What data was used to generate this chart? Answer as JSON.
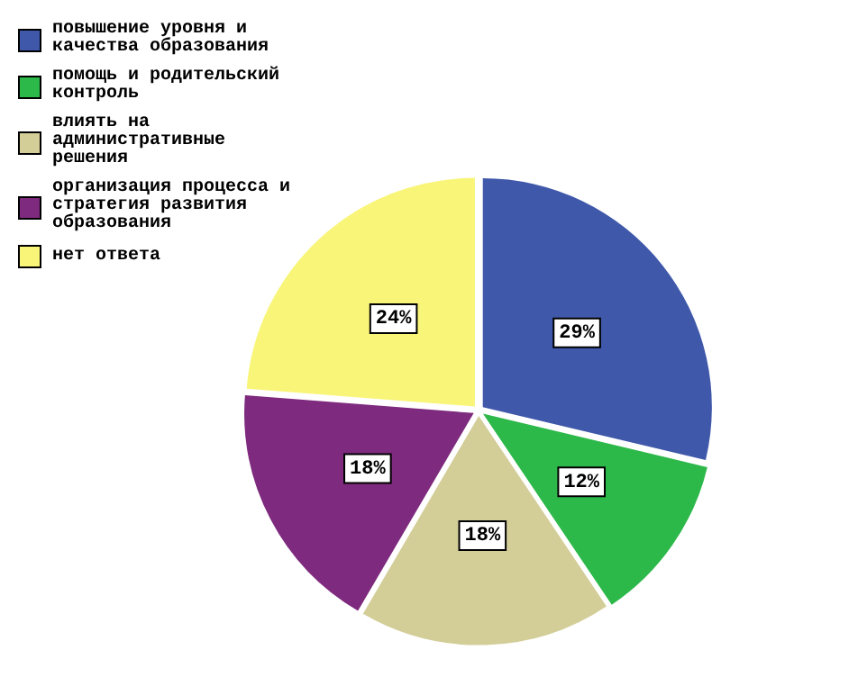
{
  "chart_data": {
    "type": "pie",
    "categories": [
      "повышение уровня и качества образования",
      "помощь и родительский контроль",
      "влиять на административные решения",
      "организация процесса и стратегия развития образования",
      "нет ответа"
    ],
    "values": [
      29,
      12,
      18,
      18,
      24
    ],
    "colors": [
      "#3f58aa",
      "#2db84a",
      "#d3cd98",
      "#7e2a7e",
      "#f8f578"
    ],
    "value_labels": [
      "29%",
      "12%",
      "18%",
      "18%",
      "24%"
    ],
    "legend": "top left"
  }
}
